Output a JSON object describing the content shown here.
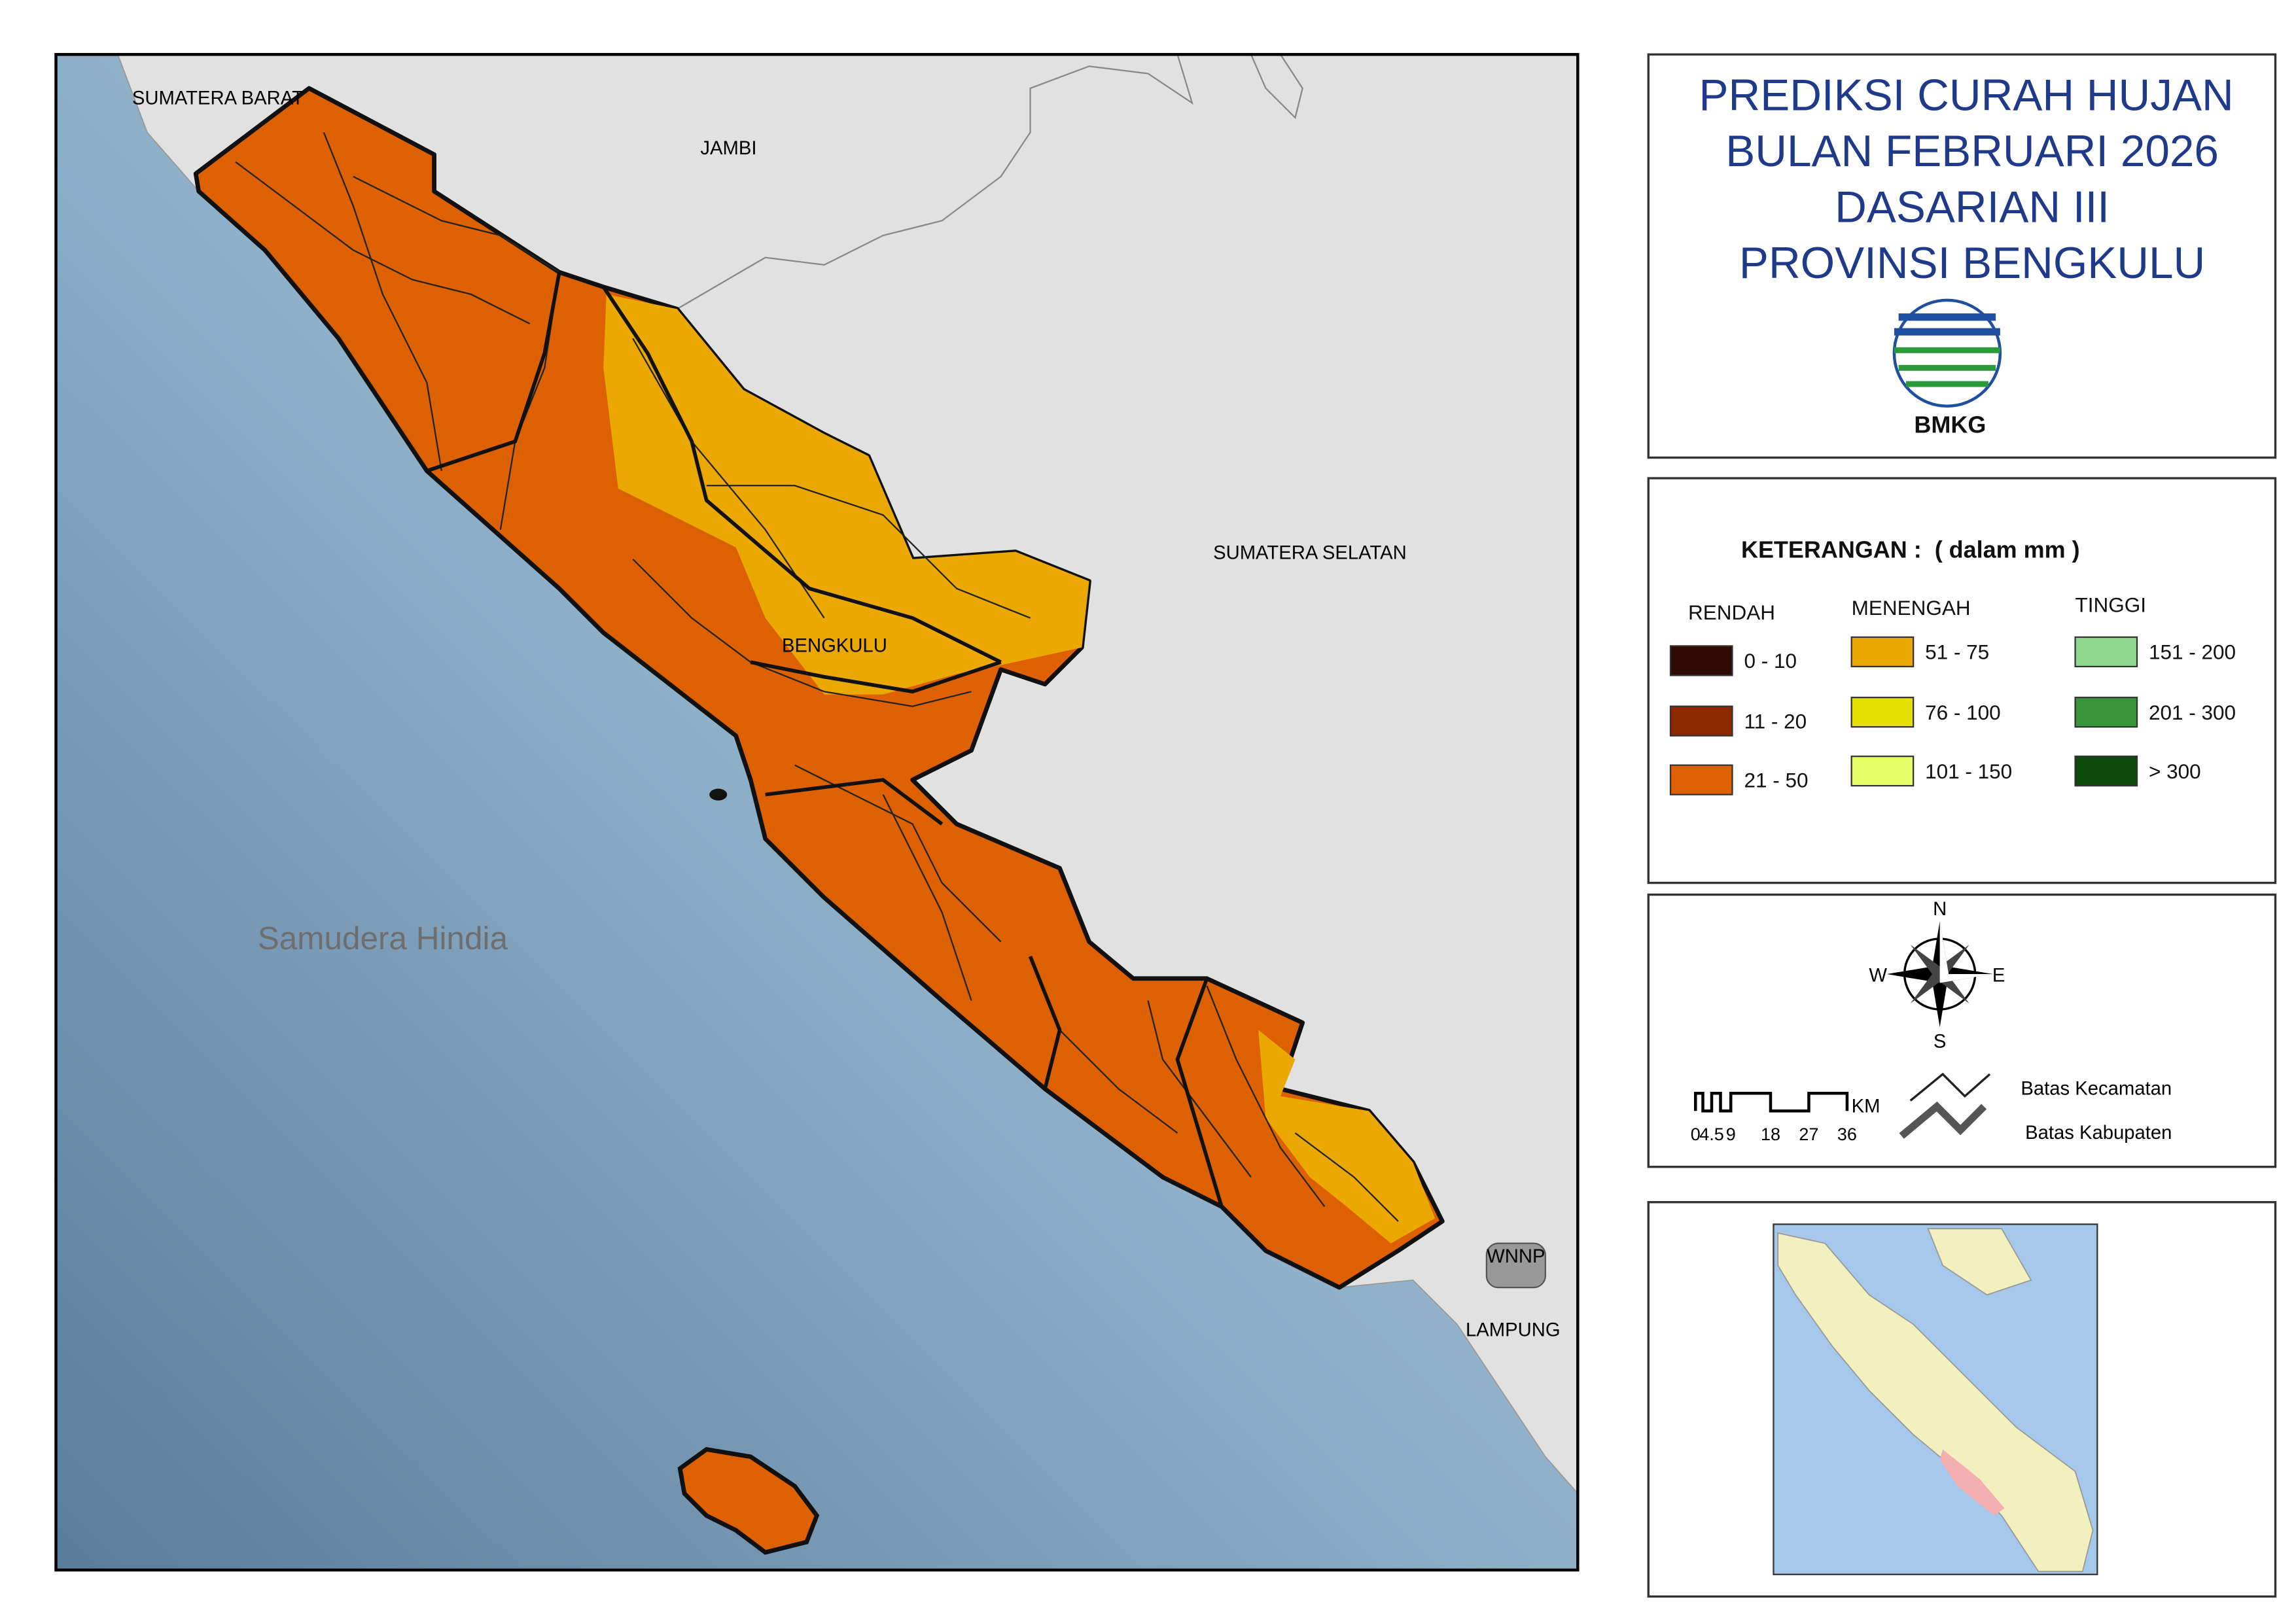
{
  "title": [
    "PREDIKSI CURAH HUJAN",
    "BULAN FEBRUARI 2026",
    "DASARIAN III",
    "PROVINSI BENGKULU"
  ],
  "logo_text": "BMKG",
  "map_labels": [
    "SUMATERA BARAT",
    "JAMBI",
    "SUMATERA SELATAN",
    "BENGKULU",
    "Samudera Hindia",
    "WNNP",
    "LAMPUNG"
  ],
  "legend": {
    "title": "KETERANGAN :  ( dalam mm )",
    "groups": [
      {
        "name": "RENDAH",
        "classes": [
          {
            "label": "0 - 10",
            "color": "#2e0a00"
          },
          {
            "label": "11 - 20",
            "color": "#8b2a00"
          },
          {
            "label": "21 - 50",
            "color": "#dd6100"
          }
        ]
      },
      {
        "name": "MENENGAH",
        "classes": [
          {
            "label": "51 - 75",
            "color": "#eba800"
          },
          {
            "label": "76 - 100",
            "color": "#e6e000"
          },
          {
            "label": "101 - 150",
            "color": "#e6ff66"
          }
        ]
      },
      {
        "name": "TINGGI",
        "classes": [
          {
            "label": "151 - 200",
            "color": "#8fd68f"
          },
          {
            "label": "201 - 300",
            "color": "#3a963a"
          },
          {
            "label": "> 300",
            "color": "#0a4a0a"
          }
        ]
      }
    ]
  },
  "compass": {
    "n": "N",
    "e": "E",
    "s": "S",
    "w": "W"
  },
  "scale": {
    "ticks": [
      "0",
      "4.5",
      "9",
      "18",
      "27",
      "36"
    ],
    "unit": "KM"
  },
  "boundaries": [
    "Batas Kecamatan",
    "Batas Kabupaten"
  ]
}
